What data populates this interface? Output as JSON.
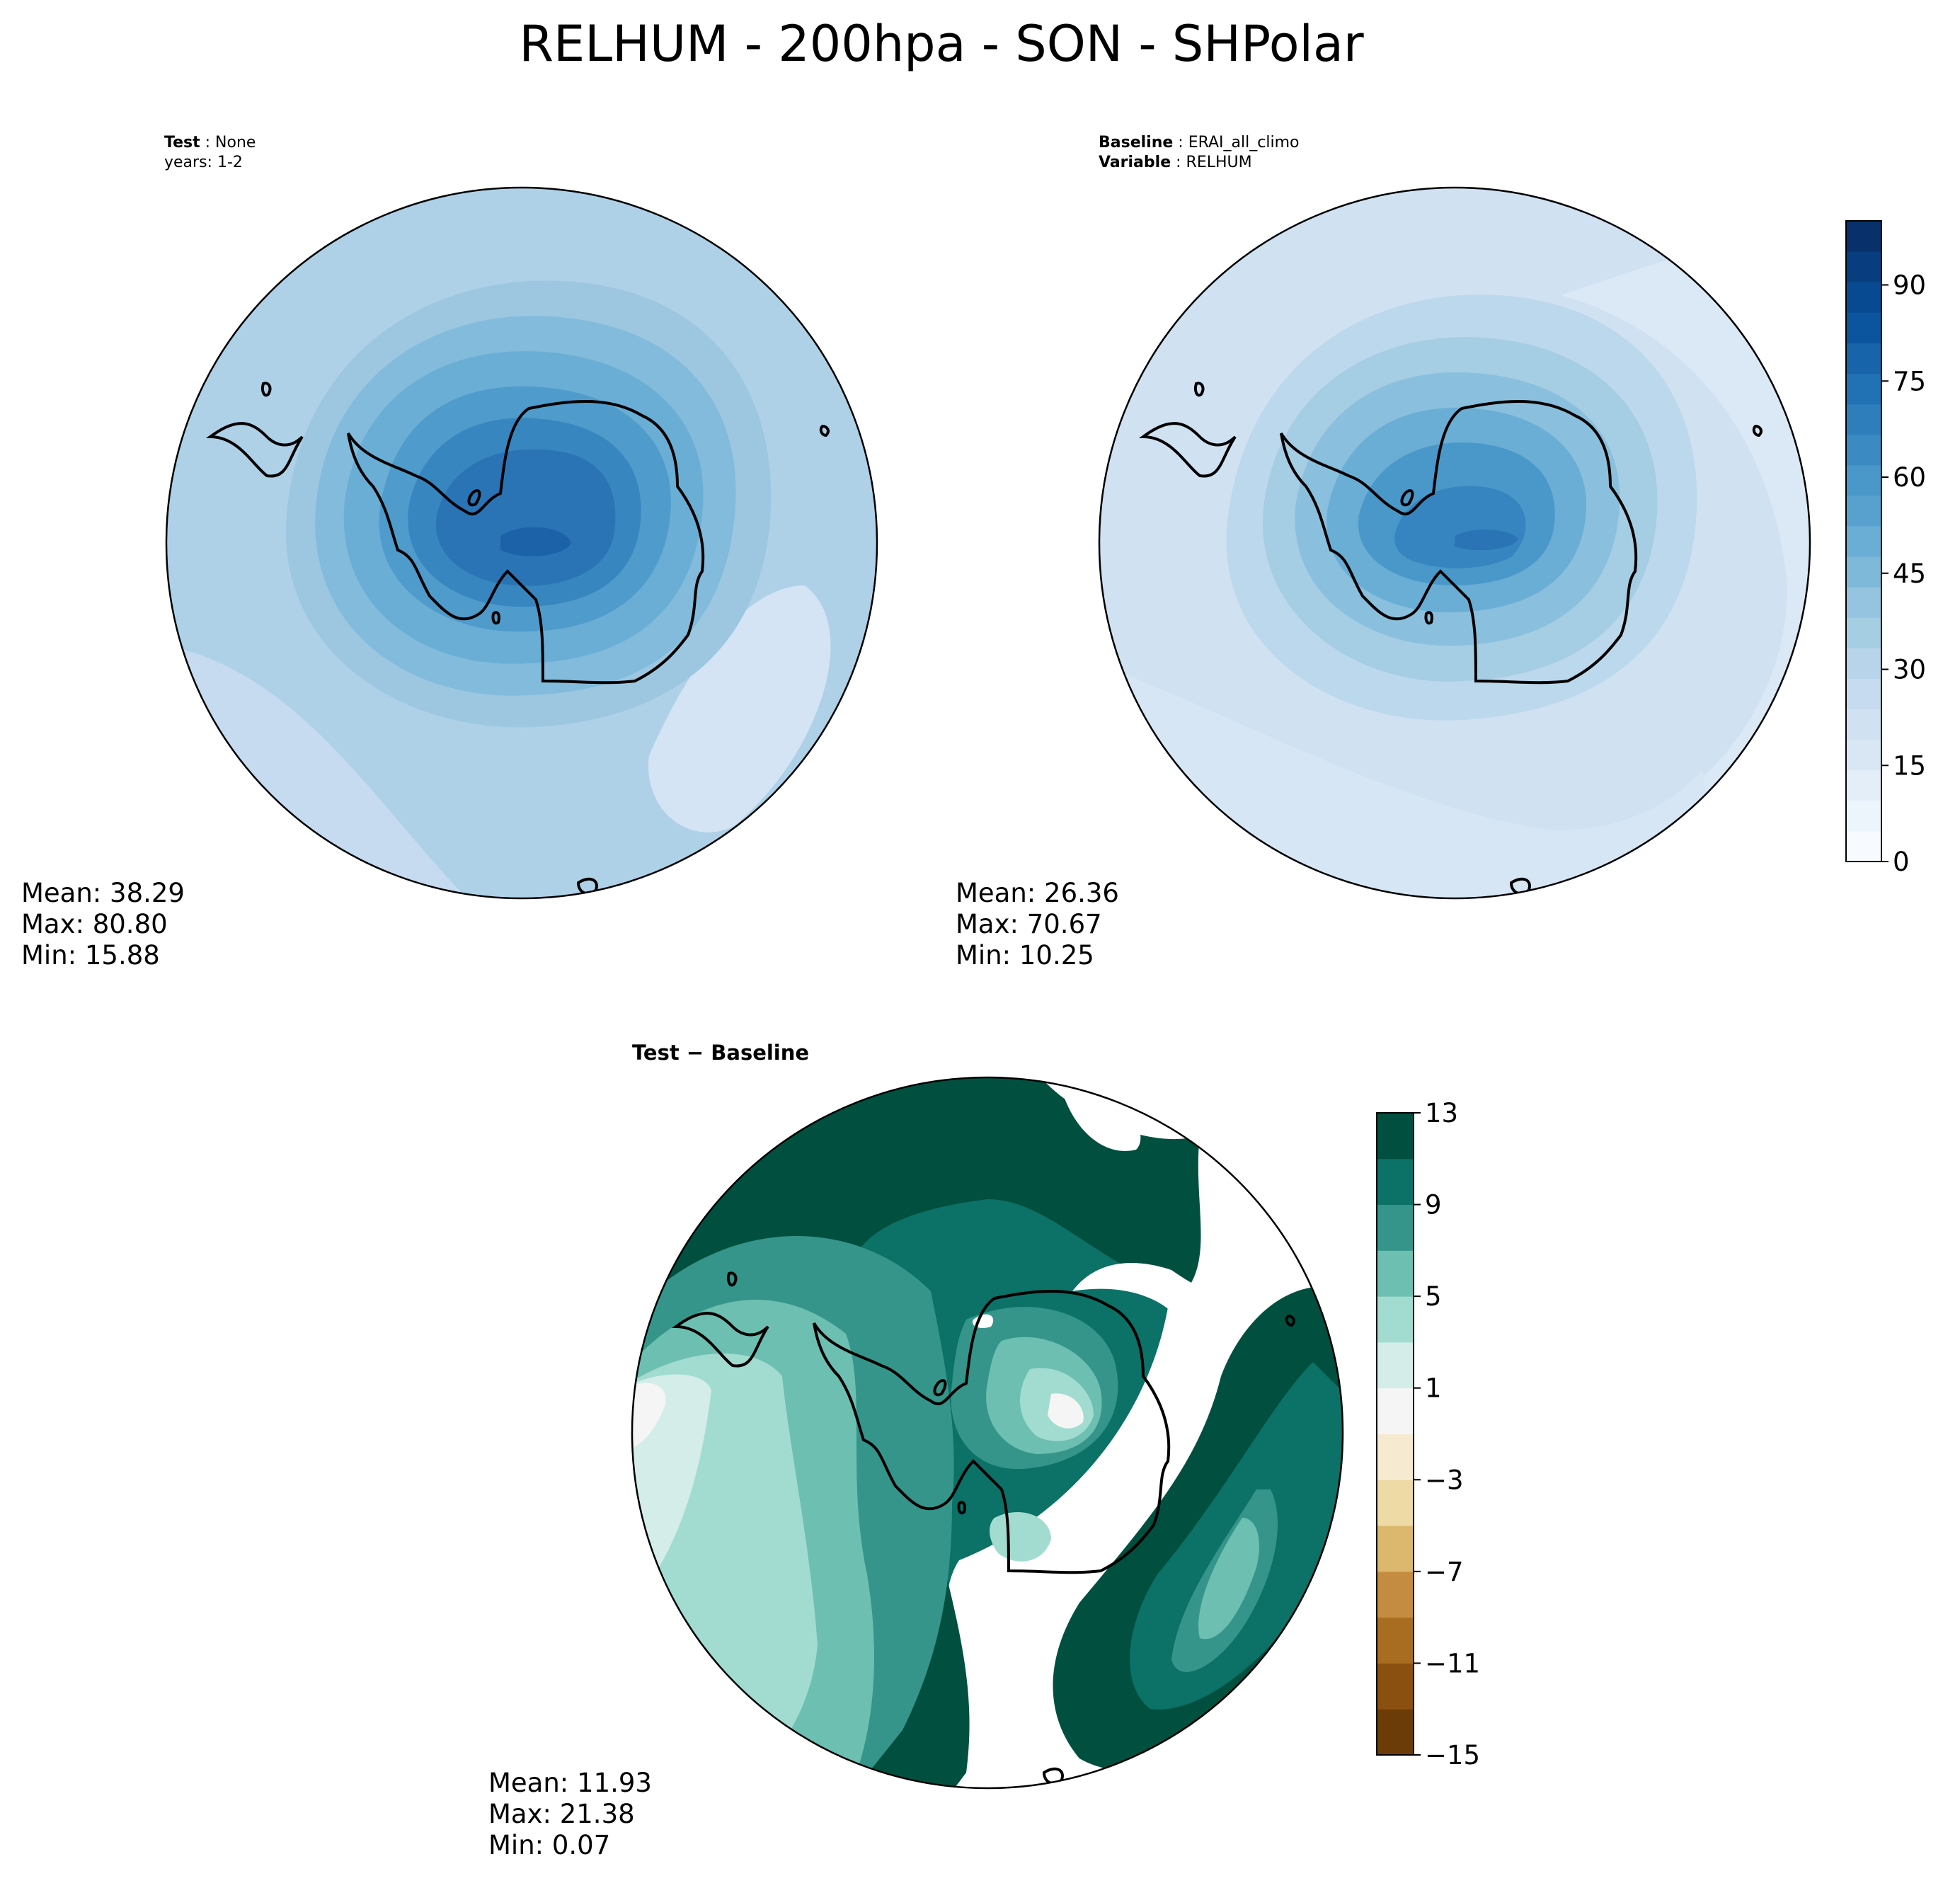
{
  "title": "RELHUM - 200hpa - SON - SHPolar",
  "panels": {
    "test": {
      "meta_key1": "Test",
      "meta_val1": "None",
      "meta_line2": "years: 1-2",
      "mean": "Mean: 38.29",
      "max": "Max: 80.80",
      "min": "Min: 15.88"
    },
    "baseline": {
      "meta_key1": "Baseline",
      "meta_val1": "ERAI_all_climo",
      "meta_key2": "Variable",
      "meta_val2": "RELHUM",
      "mean": "Mean: 26.36",
      "max": "Max: 70.67",
      "min": "Min: 10.25"
    },
    "diff": {
      "label_a": "Test",
      "label_sep": "−",
      "label_b": "Baseline",
      "mean": "Mean: 11.93",
      "max": "Max: 21.38",
      "min": "Min:  0.07"
    }
  },
  "colorbar_main": {
    "ticks": [
      "0",
      "15",
      "30",
      "45",
      "60",
      "75",
      "90"
    ],
    "colors": [
      "#f7fbff",
      "#edf5fc",
      "#e3eef8",
      "#d9e7f5",
      "#d0e1f2",
      "#c6dbef",
      "#b7d4ea",
      "#a6cee3",
      "#94c4df",
      "#7fb9da",
      "#6aaed6",
      "#58a1cf",
      "#4a98c9",
      "#3b8bc2",
      "#2e7ebc",
      "#2171b5",
      "#1764ab",
      "#0b559f",
      "#084a91",
      "#083d7f",
      "#08306b"
    ]
  },
  "colorbar_diff": {
    "ticks": [
      "−15",
      "−11",
      "−7",
      "−3",
      "1",
      "5",
      "9",
      "13"
    ],
    "colors": [
      "#6b3c08",
      "#8a5010",
      "#a96d22",
      "#c48c40",
      "#dbb86e",
      "#eedaa4",
      "#f6ead0",
      "#f5f5f5",
      "#d4ede9",
      "#a2dcd1",
      "#6dbfb1",
      "#35958a",
      "#0c7167",
      "#01503f"
    ]
  },
  "chart_data": [
    {
      "type": "heatmap",
      "title": "RELHUM - 200hpa - SON - SHPolar",
      "panel": "Test: None, years: 1-2",
      "projection": "south polar stereographic",
      "colorbar_range": [
        0,
        100
      ],
      "stats": {
        "mean": 38.29,
        "max": 80.8,
        "min": 15.88
      }
    },
    {
      "type": "heatmap",
      "panel": "Baseline: ERAI_all_climo, Variable: RELHUM",
      "projection": "south polar stereographic",
      "colorbar_range": [
        0,
        100
      ],
      "colorbar_ticks": [
        0,
        15,
        30,
        45,
        60,
        75,
        90
      ],
      "stats": {
        "mean": 26.36,
        "max": 70.67,
        "min": 10.25
      }
    },
    {
      "type": "heatmap",
      "panel": "Test − Baseline",
      "projection": "south polar stereographic",
      "colorbar_range": [
        -15,
        13
      ],
      "colorbar_ticks": [
        -15,
        -11,
        -7,
        -3,
        1,
        5,
        9,
        13
      ],
      "stats": {
        "mean": 11.93,
        "max": 21.38,
        "min": 0.07
      }
    }
  ]
}
